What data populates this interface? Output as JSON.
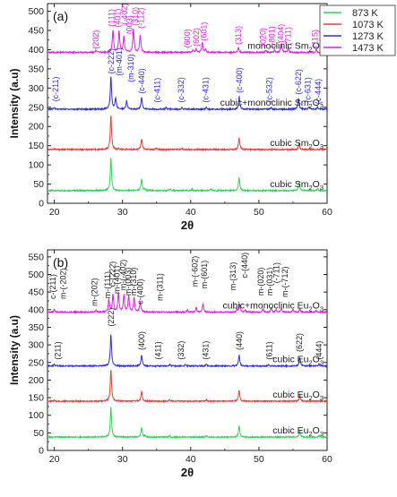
{
  "legend": [
    {
      "label": "873 K",
      "color": "#2fd35a"
    },
    {
      "label": "1073 K",
      "color": "#ee3b3b"
    },
    {
      "label": "1273 K",
      "color": "#2f2fe0"
    },
    {
      "label": "1473 K",
      "color": "#e020e0"
    }
  ],
  "chart_data": [
    {
      "type": "line",
      "panel_label": "(a)",
      "xlabel": "2θ",
      "ylabel": "Intensity (a.u)",
      "xlim": [
        19,
        60
      ],
      "ylim": [
        0,
        520
      ],
      "xticks": [
        20,
        30,
        40,
        50,
        60
      ],
      "yticks": [
        0,
        50,
        100,
        150,
        200,
        250,
        300,
        350,
        400,
        450,
        500
      ],
      "series": [
        {
          "color": "#2fd35a",
          "label_pre": "cubic Sm",
          "label_sub1": "2",
          "label_mid": "O",
          "label_sub2": "3",
          "baseline": 33,
          "peaks": [
            [
              28.3,
              85
            ],
            [
              32.8,
              30
            ],
            [
              47.1,
              33
            ],
            [
              55.9,
              22
            ],
            [
              58.6,
              6
            ],
            [
              33.3,
              4
            ],
            [
              37.0,
              4
            ],
            [
              40.2,
              4
            ],
            [
              43.0,
              4
            ]
          ]
        },
        {
          "color": "#ee3b3b",
          "label_pre": "cubic Sm",
          "label_sub1": "2",
          "label_mid": "O",
          "label_sub2": "3",
          "baseline": 140,
          "peaks": [
            [
              28.3,
              88
            ],
            [
              32.8,
              28
            ],
            [
              47.1,
              30
            ],
            [
              55.9,
              18
            ],
            [
              20.0,
              3
            ],
            [
              29.5,
              3
            ],
            [
              35.0,
              4
            ],
            [
              38.7,
              4
            ]
          ]
        },
        {
          "color": "#2f2fe0",
          "label_pre": "cubic+monoclinic Sm",
          "label_sub1": "2",
          "label_mid": "O",
          "label_sub2": "3",
          "baseline": 245,
          "peaks": [
            [
              28.3,
              85
            ],
            [
              29.0,
              28
            ],
            [
              30.6,
              22
            ],
            [
              32.8,
              30
            ],
            [
              47.1,
              32
            ],
            [
              55.8,
              28
            ],
            [
              57.3,
              6
            ],
            [
              58.6,
              6
            ],
            [
              20.0,
              4
            ],
            [
              36.4,
              4
            ],
            [
              38.7,
              4
            ],
            [
              42.3,
              4
            ],
            [
              51.8,
              4
            ]
          ]
        },
        {
          "color": "#e020e0",
          "label_pre": "monoclinic Sm",
          "label_sub1": "2",
          "label_mid": "O",
          "label_sub2": "3",
          "baseline": 393,
          "peaks": [
            [
              26.1,
              5
            ],
            [
              28.6,
              58
            ],
            [
              29.5,
              55
            ],
            [
              30.2,
              40
            ],
            [
              31.6,
              60
            ],
            [
              32.6,
              45
            ],
            [
              40.3,
              6
            ],
            [
              40.8,
              10
            ],
            [
              41.7,
              25
            ],
            [
              42.2,
              8
            ],
            [
              47.0,
              12
            ],
            [
              51.0,
              6
            ],
            [
              52.3,
              5
            ],
            [
              53.3,
              22
            ],
            [
              54.3,
              12
            ],
            [
              58.4,
              8
            ]
          ]
        }
      ],
      "annotations": [
        {
          "text": "(c-211)",
          "x": 20.2,
          "y": 265,
          "color": "#2f2fe0"
        },
        {
          "text": "(c-222)",
          "x": 28.3,
          "y": 337,
          "color": "#2f2fe0"
        },
        {
          "text": "(m-401)",
          "x": 29.5,
          "y": 332,
          "color": "#2f2fe0"
        },
        {
          "text": "(m-310)",
          "x": 31.2,
          "y": 315,
          "color": "#2f2fe0"
        },
        {
          "text": "(c-440)",
          "x": 32.8,
          "y": 285,
          "color": "#2f2fe0"
        },
        {
          "text": "(c-411)",
          "x": 35.1,
          "y": 262,
          "color": "#2f2fe0"
        },
        {
          "text": "(c-332)",
          "x": 38.6,
          "y": 262,
          "color": "#2f2fe0"
        },
        {
          "text": "(c-431)",
          "x": 42.2,
          "y": 262,
          "color": "#2f2fe0"
        },
        {
          "text": "(c-400)",
          "x": 47.1,
          "y": 287,
          "color": "#2f2fe0"
        },
        {
          "text": "(c-532)",
          "x": 51.5,
          "y": 262,
          "color": "#2f2fe0"
        },
        {
          "text": "(c-622)",
          "x": 55.8,
          "y": 283,
          "color": "#2f2fe0"
        },
        {
          "text": "(c-631)",
          "x": 57.2,
          "y": 262,
          "color": "#2f2fe0"
        },
        {
          "text": "(c-444)",
          "x": 58.7,
          "y": 258,
          "color": "#2f2fe0"
        },
        {
          "text": "(202)",
          "x": 26.1,
          "y": 402,
          "color": "#e020e0"
        },
        {
          "text": "(111)",
          "x": 28.4,
          "y": 460,
          "color": "#e020e0"
        },
        {
          "text": "(401)",
          "x": 29.3,
          "y": 458,
          "color": "#e020e0"
        },
        {
          "text": "(-402)",
          "x": 30.3,
          "y": 465,
          "color": "#e020e0"
        },
        {
          "text": "(003)",
          "x": 31.0,
          "y": 440,
          "color": "#e020e0"
        },
        {
          "text": "(310)",
          "x": 31.9,
          "y": 462,
          "color": "#e020e0"
        },
        {
          "text": "(-112)",
          "x": 32.7,
          "y": 455,
          "color": "#e020e0"
        },
        {
          "text": "(600)",
          "x": 39.5,
          "y": 405,
          "color": "#e020e0"
        },
        {
          "text": "(602)",
          "x": 40.8,
          "y": 408,
          "color": "#e020e0"
        },
        {
          "text": "(601)",
          "x": 41.9,
          "y": 423,
          "color": "#e020e0"
        },
        {
          "text": "(313)",
          "x": 47.0,
          "y": 413,
          "color": "#e020e0"
        },
        {
          "text": "(020)",
          "x": 50.6,
          "y": 408,
          "color": "#e020e0"
        },
        {
          "text": "(-801)",
          "x": 51.9,
          "y": 405,
          "color": "#e020e0"
        },
        {
          "text": "(404)",
          "x": 53.2,
          "y": 418,
          "color": "#e020e0"
        },
        {
          "text": "(711)",
          "x": 54.3,
          "y": 412,
          "color": "#e020e0"
        },
        {
          "text": "(115)",
          "x": 58.2,
          "y": 405,
          "color": "#e020e0"
        }
      ]
    },
    {
      "type": "line",
      "panel_label": "(b)",
      "xlabel": "2θ",
      "ylabel": "Intensity (a.u)",
      "xlim": [
        19,
        60
      ],
      "ylim": [
        0,
        570
      ],
      "xticks": [
        20,
        30,
        40,
        50,
        60
      ],
      "yticks": [
        0,
        50,
        100,
        150,
        200,
        250,
        300,
        350,
        400,
        450,
        500,
        550
      ],
      "series": [
        {
          "color": "#2fd35a",
          "label_pre": "cubic Eu",
          "label_sub1": "2",
          "label_mid": "O",
          "label_sub2": "3",
          "baseline": 38,
          "peaks": [
            [
              28.3,
              85
            ],
            [
              32.8,
              28
            ],
            [
              47.1,
              32
            ],
            [
              56.0,
              20
            ],
            [
              33.3,
              4
            ],
            [
              36.9,
              4
            ],
            [
              42.3,
              4
            ],
            [
              58.8,
              5
            ]
          ]
        },
        {
          "color": "#ee3b3b",
          "label_pre": "cubic Eu",
          "label_sub1": "2",
          "label_mid": "O",
          "label_sub2": "3",
          "baseline": 140,
          "peaks": [
            [
              28.3,
              90
            ],
            [
              32.8,
              28
            ],
            [
              47.1,
              30
            ],
            [
              56.0,
              18
            ],
            [
              20.0,
              3
            ],
            [
              36.9,
              4
            ],
            [
              42.3,
              4
            ]
          ]
        },
        {
          "color": "#2f2fe0",
          "label_pre": "cubic Eu",
          "label_sub1": "2",
          "label_mid": "O",
          "label_sub2": "3",
          "baseline": 240,
          "peaks": [
            [
              28.3,
              90
            ],
            [
              32.8,
              30
            ],
            [
              47.1,
              30
            ],
            [
              56.0,
              24
            ],
            [
              58.8,
              6
            ],
            [
              20.0,
              5
            ],
            [
              36.9,
              5
            ],
            [
              39.2,
              4
            ],
            [
              42.3,
              5
            ],
            [
              51.4,
              4
            ]
          ]
        },
        {
          "color": "#e020e0",
          "label_pre": "cubic+monoclinic Eu",
          "label_sub1": "2",
          "label_mid": "O",
          "label_sub2": "3",
          "baseline": 393,
          "peaks": [
            [
              20.0,
              8
            ],
            [
              26.1,
              6
            ],
            [
              28.0,
              35
            ],
            [
              28.6,
              50
            ],
            [
              29.4,
              55
            ],
            [
              30.2,
              48
            ],
            [
              30.9,
              45
            ],
            [
              31.7,
              40
            ],
            [
              32.6,
              30
            ],
            [
              39.5,
              6
            ],
            [
              40.8,
              14
            ],
            [
              41.8,
              22
            ],
            [
              46.8,
              8
            ],
            [
              47.2,
              22
            ],
            [
              48.0,
              6
            ],
            [
              50.6,
              10
            ],
            [
              51.8,
              14
            ],
            [
              52.5,
              8
            ],
            [
              53.3,
              12
            ],
            [
              55.0,
              8
            ],
            [
              56.0,
              10
            ],
            [
              58.4,
              6
            ]
          ]
        }
      ],
      "annotations": [
        {
          "text": "(211)",
          "x": 20.5,
          "y": 258,
          "color": "#222222"
        },
        {
          "text": "(222)",
          "x": 28.3,
          "y": 352,
          "color": "#222222"
        },
        {
          "text": "(400)",
          "x": 32.8,
          "y": 285,
          "color": "#222222"
        },
        {
          "text": "(411)",
          "x": 35.2,
          "y": 258,
          "color": "#222222"
        },
        {
          "text": "(332)",
          "x": 38.6,
          "y": 258,
          "color": "#222222"
        },
        {
          "text": "(431)",
          "x": 42.2,
          "y": 258,
          "color": "#222222"
        },
        {
          "text": "(440)",
          "x": 47.1,
          "y": 285,
          "color": "#222222"
        },
        {
          "text": "(611)",
          "x": 51.5,
          "y": 258,
          "color": "#222222"
        },
        {
          "text": "(622)",
          "x": 55.9,
          "y": 280,
          "color": "#222222"
        },
        {
          "text": "(444)",
          "x": 58.8,
          "y": 258,
          "color": "#222222"
        },
        {
          "text": "c-(211)",
          "x": 19.8,
          "y": 430,
          "rot": true,
          "color": "#222222"
        },
        {
          "text": "m-(-202)",
          "x": 21.3,
          "y": 430,
          "rot": true,
          "color": "#222222"
        },
        {
          "text": "m-(202)",
          "x": 25.9,
          "y": 410,
          "rot": true,
          "color": "#222222"
        },
        {
          "text": "m-(111)",
          "x": 27.8,
          "y": 432,
          "rot": true,
          "color": "#222222"
        },
        {
          "text": "c-(222)",
          "x": 28.5,
          "y": 465,
          "rot": true,
          "color": "#222222"
        },
        {
          "text": "m-(401)",
          "x": 29.2,
          "y": 445,
          "rot": true,
          "color": "#222222"
        },
        {
          "text": "m-(-402)",
          "x": 30.1,
          "y": 455,
          "rot": true,
          "color": "#222222"
        },
        {
          "text": "m-(003)",
          "x": 30.8,
          "y": 440,
          "rot": true,
          "color": "#222222"
        },
        {
          "text": "m-(310)",
          "x": 31.6,
          "y": 440,
          "rot": true,
          "color": "#222222"
        },
        {
          "text": "c-(400)",
          "x": 32.6,
          "y": 415,
          "rot": true,
          "color": "#222222"
        },
        {
          "text": "m-(311)",
          "x": 35.5,
          "y": 425,
          "rot": true,
          "color": "#222222"
        },
        {
          "text": "m-(-602)",
          "x": 40.6,
          "y": 465,
          "rot": true,
          "color": "#222222"
        },
        {
          "text": "m-(601)",
          "x": 42.0,
          "y": 460,
          "rot": true,
          "color": "#222222"
        },
        {
          "text": "m-(313)",
          "x": 46.2,
          "y": 455,
          "rot": true,
          "color": "#222222"
        },
        {
          "text": "c-(440)",
          "x": 47.9,
          "y": 490,
          "rot": true,
          "color": "#222222"
        },
        {
          "text": "m-(020)",
          "x": 50.3,
          "y": 440,
          "rot": true,
          "color": "#222222"
        },
        {
          "text": "m-(031)",
          "x": 51.6,
          "y": 440,
          "rot": true,
          "color": "#222222"
        },
        {
          "text": "(-711)",
          "x": 52.6,
          "y": 475,
          "rot": true,
          "color": "#222222"
        },
        {
          "text": "m-(-712)",
          "x": 53.8,
          "y": 435,
          "rot": true,
          "color": "#222222"
        }
      ]
    }
  ]
}
